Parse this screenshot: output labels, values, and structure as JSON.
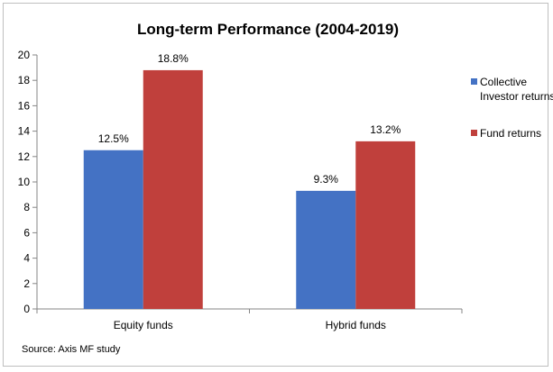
{
  "chart_data": {
    "type": "bar",
    "title": "Long-term Performance (2004-2019)",
    "categories": [
      "Equity funds",
      "Hybrid funds"
    ],
    "series": [
      {
        "name": "Collective Investor returns",
        "name_lines": [
          "Collective",
          "Investor returns"
        ],
        "values": [
          12.5,
          9.3
        ],
        "labels": [
          "12.5%",
          "9.3%"
        ],
        "color": "#4472c4"
      },
      {
        "name": "Fund returns",
        "name_lines": [
          "Fund returns"
        ],
        "values": [
          18.8,
          13.2
        ],
        "labels": [
          "18.8%",
          "13.2%"
        ],
        "color": "#c0403c"
      }
    ],
    "ylim": [
      0,
      20
    ],
    "yticks": [
      "0",
      "2",
      "4",
      "6",
      "8",
      "10",
      "12",
      "14",
      "16",
      "18",
      "20"
    ],
    "grid": false,
    "legend_position": "right",
    "source": "Source: Axis MF study"
  }
}
